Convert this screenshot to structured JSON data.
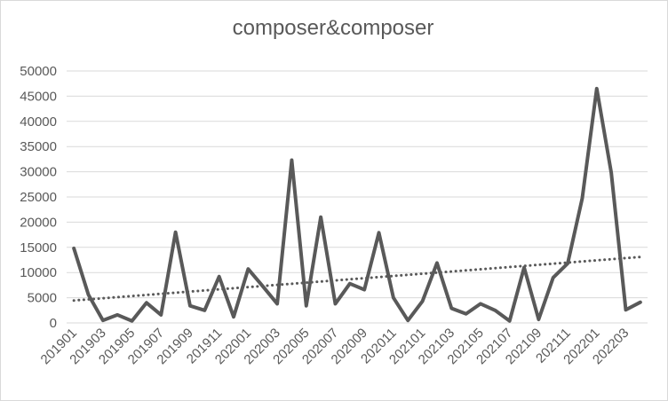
{
  "chart_data": {
    "type": "line",
    "title": "composer&composer",
    "xlabel": "",
    "ylabel": "",
    "ylim": [
      0,
      50000
    ],
    "yticks": [
      0,
      5000,
      10000,
      15000,
      20000,
      25000,
      30000,
      35000,
      40000,
      45000,
      50000
    ],
    "x_tick_labels": [
      "201901",
      "201903",
      "201905",
      "201907",
      "201909",
      "201911",
      "202001",
      "202003",
      "202005",
      "202007",
      "202009",
      "202011",
      "202101",
      "202103",
      "202105",
      "202107",
      "202109",
      "202111",
      "202201",
      "202203"
    ],
    "grid": true,
    "legend": "none",
    "series": [
      {
        "color": "#595959",
        "x": [
          "201901",
          "201902",
          "201903",
          "201904",
          "201905",
          "201906",
          "201907",
          "201908",
          "201909",
          "201910",
          "201911",
          "201912",
          "202001",
          "202002",
          "202003",
          "202004",
          "202005",
          "202006",
          "202007",
          "202008",
          "202009",
          "202010",
          "202011",
          "202012",
          "202101",
          "202102",
          "202103",
          "202104",
          "202105",
          "202106",
          "202107",
          "202108",
          "202109",
          "202110",
          "202111",
          "202112",
          "202201",
          "202202",
          "202203",
          "202204"
        ],
        "values": [
          14800,
          5600,
          500,
          1600,
          400,
          4000,
          1600,
          18000,
          3400,
          2500,
          9200,
          1200,
          10700,
          7300,
          3800,
          32300,
          3400,
          21000,
          3800,
          7800,
          6600,
          17900,
          5000,
          500,
          4300,
          11900,
          2900,
          1800,
          3800,
          2500,
          400,
          11000,
          700,
          9000,
          11800,
          24700,
          46500,
          29800,
          2600,
          4100
        ]
      }
    ],
    "trendline": {
      "type": "linear",
      "style": "dotted",
      "color": "#595959"
    }
  }
}
